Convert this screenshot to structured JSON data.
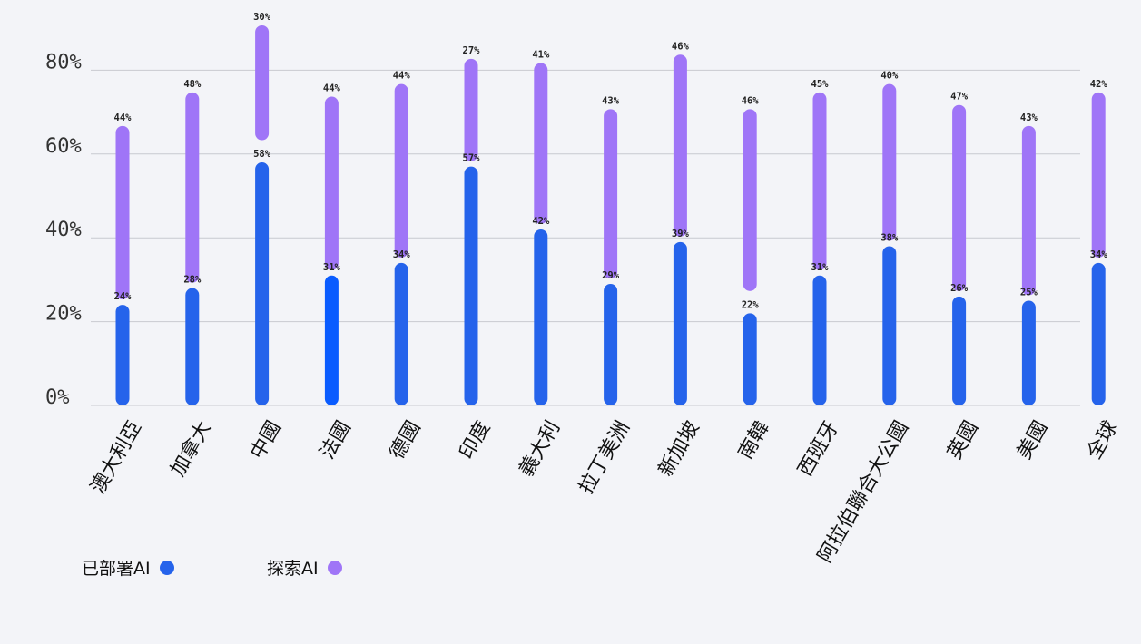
{
  "chart_data": {
    "type": "bar",
    "categories": [
      "澳大利亞",
      "加拿大",
      "中國",
      "法國",
      "德國",
      "印度",
      "義大利",
      "拉丁美洲",
      "新加坡",
      "南韓",
      "西班牙",
      "阿拉伯聯合大公國",
      "英國",
      "美國",
      "全球"
    ],
    "series": [
      {
        "name": "已部署AI",
        "color": "#2563eb",
        "values": [
          24,
          28,
          58,
          31,
          34,
          57,
          42,
          29,
          39,
          22,
          31,
          38,
          26,
          25,
          34
        ]
      },
      {
        "name": "探索AI",
        "color": "#9f75f7",
        "values": [
          44,
          48,
          30,
          44,
          44,
          27,
          41,
          43,
          46,
          46,
          45,
          40,
          47,
          43,
          42
        ]
      }
    ],
    "series_display_offset": [
      0,
      0,
      4,
      0,
      0,
      0,
      0,
      0,
      0,
      4,
      0,
      0,
      0,
      0,
      0
    ],
    "yticks": [
      0,
      20,
      40,
      60,
      80
    ],
    "ytick_labels": [
      "0%",
      "20%",
      "40%",
      "60%",
      "80%"
    ],
    "ylim": [
      0,
      80
    ],
    "value_suffix": "%",
    "grid": true,
    "legend_position": "bottom-left",
    "highlight_color": "#0a5cff"
  },
  "legend": {
    "deployed_label": "已部署AI",
    "exploring_label": "探索AI"
  }
}
